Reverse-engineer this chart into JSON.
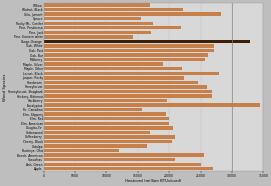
{
  "species_top_to_bottom": [
    "Willow",
    "Walnut, Black",
    "Gila, Jument",
    "Spruce",
    "Rocky Mt., Conifer",
    "Pine, Ponderosa",
    "Pine, Jack",
    "Pine, Eastern white",
    "Osage-Orange",
    "Oak, White",
    "Oak, Post",
    "Oak, Bur",
    "Mulberry",
    "Maple, Silver",
    "Maple, Other",
    "Locust, Black",
    "Juniper, Rocky",
    "Hornbeam",
    "Honeylocust",
    "Honeylocust, Shagbark",
    "Hickory, Bitternut",
    "Hackberry",
    "Eucalyptus",
    "Fir, Canadian",
    "Elm, Slippery",
    "Elm, Red",
    "Elm, American",
    "Douglas-Fir",
    "Cottonwood",
    "Coffeeberry",
    "Cherry, Black",
    "Catalpa",
    "Buckeye, Ohio",
    "Beech, American",
    "Sassafras",
    "Ash, Green",
    "Apple"
  ],
  "values_top_to_bottom": [
    17.0,
    22.2,
    28.2,
    15.5,
    17.5,
    21.9,
    17.1,
    14.3,
    32.9,
    27.1,
    27.1,
    26.2,
    25.7,
    19.0,
    22.0,
    27.9,
    22.3,
    24.6,
    26.0,
    26.9,
    26.9,
    19.7,
    34.5,
    15.6,
    19.5,
    20.0,
    20.0,
    20.6,
    17.0,
    21.0,
    20.4,
    16.4,
    12.0,
    25.5,
    21.0,
    25.0,
    27.0
  ],
  "dark_bar_species": "Osage-Orange",
  "bar_color": "#c8804a",
  "dark_bar_color": "#3d1f08",
  "fig_bg": "#bebebe",
  "plot_bg": "#d8d8d8",
  "grid_color": "#c0c0c0",
  "vline_x": 30,
  "vline_color": "#888888",
  "xlim": [
    0,
    35
  ],
  "xtick_vals": [
    0,
    5,
    10,
    15,
    20,
    25,
    30,
    35
  ],
  "xlabel": "Heatcord (million BTUs/cord)",
  "ylabel": "Wood Species",
  "label_fontsize": 2.2,
  "axis_label_fontsize": 2.8,
  "bar_height": 0.75
}
